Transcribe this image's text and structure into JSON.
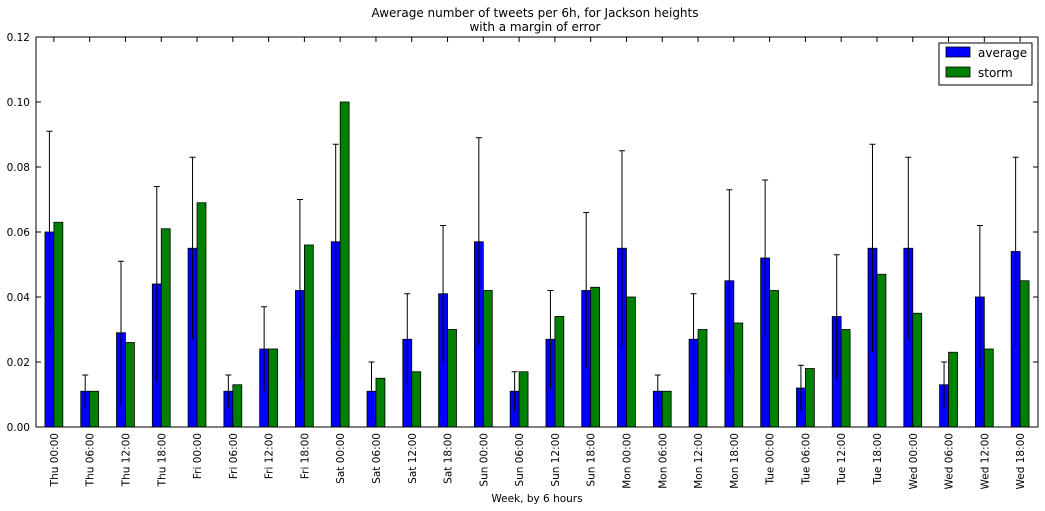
{
  "chart_data": {
    "type": "bar",
    "title": "Awerage number of tweets per 6h, for Jackson heights",
    "subtitle": "with a margin of error",
    "xlabel": "Week, by 6 hours",
    "ylabel": "",
    "ylim": [
      0,
      0.12
    ],
    "yticks": [
      "0.00",
      "0.02",
      "0.04",
      "0.06",
      "0.08",
      "0.10",
      "0.12"
    ],
    "grid": false,
    "legend_position": "top-right",
    "categories": [
      "Thu 00:00",
      "Thu 06:00",
      "Thu 12:00",
      "Thu 18:00",
      "Fri 00:00",
      "Fri 06:00",
      "Fri 12:00",
      "Fri 18:00",
      "Sat 00:00",
      "Sat 06:00",
      "Sat 12:00",
      "Sat 18:00",
      "Sun 00:00",
      "Sun 06:00",
      "Sun 12:00",
      "Sun 18:00",
      "Mon 00:00",
      "Mon 06:00",
      "Mon 12:00",
      "Mon 18:00",
      "Tue 00:00",
      "Tue 06:00",
      "Tue 12:00",
      "Tue 18:00",
      "Wed 00:00",
      "Wed 06:00",
      "Wed 12:00",
      "Wed 18:00"
    ],
    "series": [
      {
        "name": "average",
        "color": "#0000ff",
        "values": [
          0.06,
          0.011,
          0.029,
          0.044,
          0.055,
          0.011,
          0.024,
          0.042,
          0.057,
          0.011,
          0.027,
          0.041,
          0.057,
          0.011,
          0.027,
          0.042,
          0.055,
          0.011,
          0.027,
          0.045,
          0.052,
          0.012,
          0.034,
          0.055,
          0.055,
          0.013,
          0.04,
          0.054
        ],
        "error_upper": [
          0.091,
          0.016,
          0.051,
          0.074,
          0.083,
          0.016,
          0.037,
          0.07,
          0.087,
          0.02,
          0.041,
          0.062,
          0.089,
          0.017,
          0.042,
          0.066,
          0.085,
          0.016,
          0.041,
          0.073,
          0.076,
          0.019,
          0.053,
          0.087,
          0.083,
          0.02,
          0.062,
          0.083
        ]
      },
      {
        "name": "storm",
        "color": "#008000",
        "values": [
          0.063,
          0.011,
          0.026,
          0.061,
          0.069,
          0.013,
          0.024,
          0.056,
          0.1,
          0.015,
          0.017,
          0.03,
          0.042,
          0.017,
          0.034,
          0.043,
          0.04,
          0.011,
          0.03,
          0.032,
          0.042,
          0.018,
          0.03,
          0.047,
          0.035,
          0.023,
          0.024,
          0.045
        ]
      }
    ]
  }
}
